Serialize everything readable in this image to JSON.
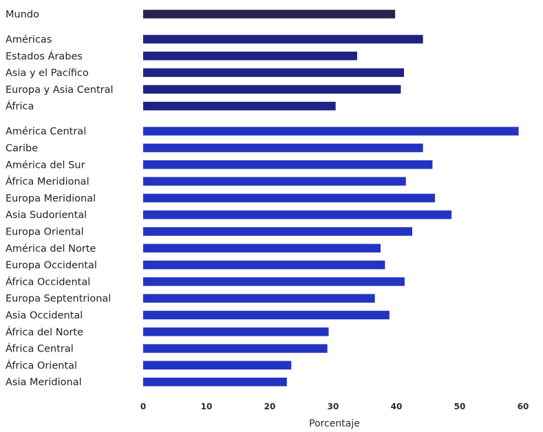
{
  "chart_data": {
    "type": "bar",
    "orientation": "horizontal",
    "xlabel": "Porcentaje",
    "xlim": [
      0,
      60
    ],
    "xticks": [
      0,
      10,
      20,
      30,
      40,
      50,
      60
    ],
    "grid": false,
    "groups": [
      {
        "color": "#272350",
        "categories": [
          "Mundo"
        ],
        "values": [
          39.8
        ]
      },
      {
        "color": "#202383",
        "categories": [
          "Américas",
          "Estados Árabes",
          "Asia y el Pacífico",
          "Europa y Asia Central",
          "África"
        ],
        "values": [
          44.2,
          33.8,
          41.2,
          40.7,
          30.4
        ]
      },
      {
        "color": "#2434c2",
        "categories": [
          "América Central",
          "Caribe",
          "América del Sur",
          "África Meridional",
          "Europa Meridional",
          "Asia Sudoriental",
          "Europa Oriental",
          "América del Norte",
          "Europa Occidental",
          "África Occidental",
          "Europa Septentrional",
          "Asia Occidental",
          "África del Norte",
          "África Central",
          "África Oriental",
          "Asia Meridional"
        ],
        "values": [
          59.3,
          44.2,
          45.7,
          41.5,
          46.1,
          48.7,
          42.5,
          37.5,
          38.2,
          41.3,
          36.6,
          38.9,
          29.3,
          29.1,
          23.4,
          22.7
        ]
      }
    ]
  }
}
